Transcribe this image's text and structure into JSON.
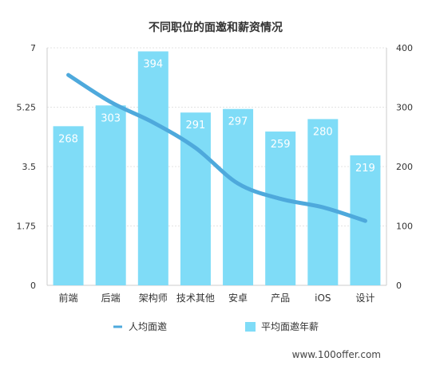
{
  "chart_data": {
    "type": "bar",
    "title": "不同职位的面邀和薪资情况",
    "categories": [
      "前端",
      "后端",
      "架构师",
      "技术其他",
      "安卓",
      "产品",
      "iOS",
      "设计"
    ],
    "series": [
      {
        "name": "平均面邀年薪",
        "type": "bar",
        "axis": "right",
        "values": [
          268,
          303,
          394,
          291,
          297,
          259,
          280,
          219
        ],
        "color": "#7fdcf7"
      },
      {
        "name": "人均面邀",
        "type": "line",
        "axis": "left",
        "values": [
          6.2,
          5.4,
          4.8,
          4.05,
          3.0,
          2.55,
          2.3,
          1.9
        ],
        "color": "#4ea9dc"
      }
    ],
    "y_left": {
      "ylim": [
        0,
        7
      ],
      "ticks": [
        "0",
        "1.75",
        "3.5",
        "5.25",
        "7"
      ]
    },
    "y_right": {
      "ylim": [
        0,
        400
      ],
      "ticks": [
        "0",
        "100",
        "200",
        "300",
        "400"
      ]
    },
    "grid": true,
    "legend_position": "bottom",
    "source": "www.100offer.com"
  }
}
